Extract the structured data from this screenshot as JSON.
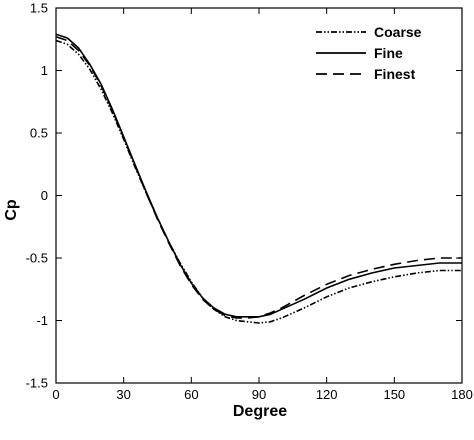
{
  "chart_data": {
    "type": "line",
    "xlabel": "Degree",
    "ylabel": "Cp",
    "xlim": [
      0,
      180
    ],
    "ylim": [
      -1.5,
      1.5
    ],
    "xticks": [
      0,
      30,
      60,
      90,
      120,
      150,
      180
    ],
    "yticks": [
      1.5,
      1,
      0.5,
      0,
      -0.5,
      -1,
      -1.5
    ],
    "xtick_labels": [
      "0",
      "30",
      "60",
      "90",
      "120",
      "150",
      "180"
    ],
    "ytick_labels": [
      "1.5",
      "1",
      "0.5",
      "0",
      "-0.5",
      "-1",
      "-1.5"
    ],
    "grid": false,
    "legend_position": "top-right",
    "series": [
      {
        "name": "Coarse",
        "style": "dash-dot-dot",
        "x": [
          0,
          5,
          10,
          15,
          20,
          25,
          30,
          35,
          40,
          45,
          50,
          55,
          60,
          65,
          70,
          75,
          80,
          85,
          90,
          95,
          100,
          110,
          120,
          130,
          140,
          150,
          160,
          170,
          180
        ],
        "y": [
          1.24,
          1.21,
          1.13,
          1.01,
          0.85,
          0.66,
          0.45,
          0.23,
          0.02,
          -0.18,
          -0.37,
          -0.54,
          -0.69,
          -0.82,
          -0.91,
          -0.97,
          -1.0,
          -1.01,
          -1.02,
          -1.01,
          -0.98,
          -0.9,
          -0.81,
          -0.74,
          -0.69,
          -0.65,
          -0.62,
          -0.6,
          -0.6
        ]
      },
      {
        "name": "Fine",
        "style": "solid",
        "x": [
          0,
          5,
          10,
          15,
          20,
          25,
          30,
          35,
          40,
          45,
          50,
          55,
          60,
          65,
          70,
          75,
          80,
          85,
          90,
          95,
          100,
          110,
          120,
          130,
          140,
          150,
          160,
          170,
          180
        ],
        "y": [
          1.29,
          1.26,
          1.18,
          1.05,
          0.89,
          0.69,
          0.47,
          0.25,
          0.03,
          -0.18,
          -0.37,
          -0.55,
          -0.7,
          -0.82,
          -0.9,
          -0.95,
          -0.97,
          -0.97,
          -0.97,
          -0.95,
          -0.91,
          -0.83,
          -0.74,
          -0.67,
          -0.62,
          -0.58,
          -0.56,
          -0.54,
          -0.54
        ]
      },
      {
        "name": "Finest",
        "style": "dashed",
        "x": [
          0,
          5,
          10,
          15,
          20,
          25,
          30,
          35,
          40,
          45,
          50,
          55,
          60,
          65,
          70,
          75,
          80,
          85,
          90,
          95,
          100,
          110,
          120,
          130,
          140,
          150,
          160,
          170,
          180
        ],
        "y": [
          1.27,
          1.24,
          1.16,
          1.04,
          0.88,
          0.68,
          0.46,
          0.24,
          0.02,
          -0.19,
          -0.38,
          -0.56,
          -0.71,
          -0.83,
          -0.91,
          -0.96,
          -0.98,
          -0.98,
          -0.97,
          -0.94,
          -0.9,
          -0.8,
          -0.71,
          -0.64,
          -0.59,
          -0.55,
          -0.52,
          -0.5,
          -0.5
        ]
      }
    ]
  }
}
